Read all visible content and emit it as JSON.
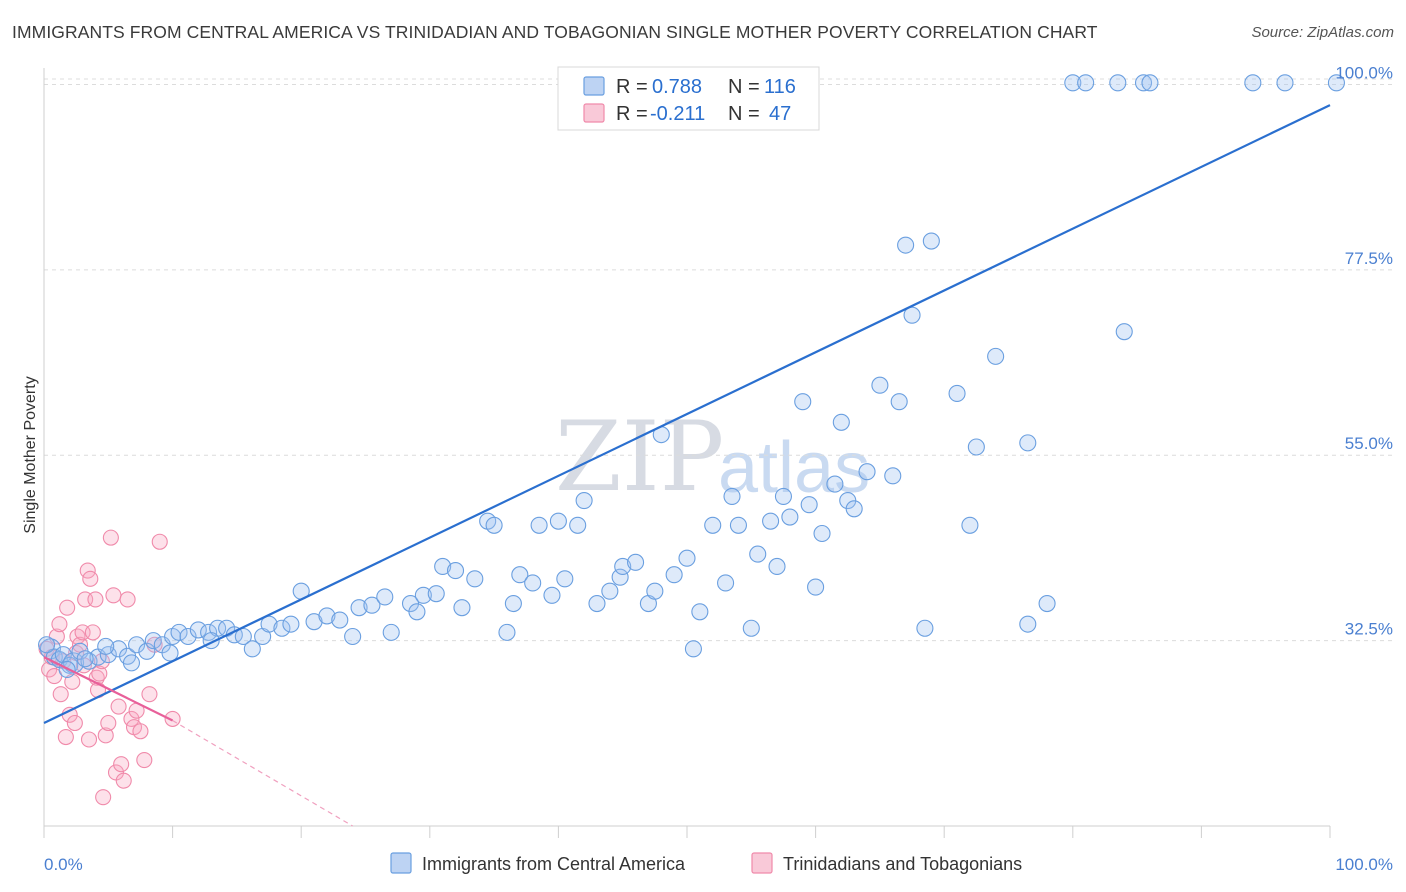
{
  "title": "IMMIGRANTS FROM CENTRAL AMERICA VS TRINIDADIAN AND TOBAGONIAN SINGLE MOTHER POVERTY CORRELATION CHART",
  "source": "Source: ZipAtlas.com",
  "watermark": {
    "zip": "ZIP",
    "atlas": "atlas"
  },
  "colors": {
    "blue": "#6a9fe0",
    "blue_line": "#2a6fcf",
    "pink": "#f08aaa",
    "pink_line": "#e8609a",
    "axis_text": "#4a7fd0"
  },
  "legend": {
    "series1": {
      "r_label": "R =",
      "r_value": "0.788",
      "n_label": "N =",
      "n_value": "116"
    },
    "series2": {
      "r_label": "R =",
      "r_value": "-0.211",
      "n_label": "N =",
      "n_value": "47"
    }
  },
  "chart_data": {
    "type": "scatter",
    "title": "IMMIGRANTS FROM CENTRAL AMERICA VS TRINIDADIAN AND TOBAGONIAN SINGLE MOTHER POVERTY CORRELATION CHART",
    "xlabel": "",
    "ylabel": "Single Mother Poverty",
    "xlim": [
      0,
      100
    ],
    "ylim": [
      10,
      102
    ],
    "x_tick_labels": [
      "0.0%",
      "100.0%"
    ],
    "y_ticks": [
      32.5,
      55.0,
      77.5,
      100.0
    ],
    "y_tick_labels": [
      "32.5%",
      "55.0%",
      "77.5%",
      "100.0%"
    ],
    "grid": true,
    "legend_position": "top-center",
    "series": [
      {
        "name": "Immigrants from Central America",
        "color": "#6a9fe0",
        "trend": {
          "x": [
            0,
            100
          ],
          "y": [
            22.5,
            97.5
          ]
        },
        "points": [
          [
            0.5,
            31.5
          ],
          [
            0.8,
            30.5
          ],
          [
            1.2,
            30.2
          ],
          [
            1.5,
            30.8
          ],
          [
            2.0,
            29.5
          ],
          [
            2.3,
            29.8
          ],
          [
            2.8,
            31.2
          ],
          [
            3.5,
            30.0
          ],
          [
            4.2,
            30.5
          ],
          [
            5.0,
            30.8
          ],
          [
            5.8,
            31.5
          ],
          [
            6.5,
            30.6
          ],
          [
            7.2,
            32.0
          ],
          [
            8.0,
            31.2
          ],
          [
            8.5,
            32.5
          ],
          [
            9.2,
            32.0
          ],
          [
            10.0,
            33.0
          ],
          [
            10.5,
            33.5
          ],
          [
            11.2,
            33.0
          ],
          [
            12.0,
            33.8
          ],
          [
            12.8,
            33.5
          ],
          [
            13.5,
            34.0
          ],
          [
            14.2,
            34.0
          ],
          [
            14.8,
            33.2
          ],
          [
            15.5,
            33.0
          ],
          [
            16.2,
            31.5
          ],
          [
            17.0,
            33.0
          ],
          [
            17.5,
            34.5
          ],
          [
            18.5,
            34.0
          ],
          [
            19.2,
            34.5
          ],
          [
            20.0,
            38.5
          ],
          [
            21.0,
            34.8
          ],
          [
            22.0,
            35.5
          ],
          [
            23.0,
            35.0
          ],
          [
            24.0,
            33.0
          ],
          [
            24.5,
            36.5
          ],
          [
            25.5,
            36.8
          ],
          [
            26.5,
            37.8
          ],
          [
            27.0,
            33.5
          ],
          [
            28.5,
            37.0
          ],
          [
            29.0,
            36.0
          ],
          [
            29.5,
            38.0
          ],
          [
            30.5,
            38.2
          ],
          [
            31.0,
            41.5
          ],
          [
            32.0,
            41.0
          ],
          [
            32.5,
            36.5
          ],
          [
            33.5,
            40.0
          ],
          [
            34.5,
            47.0
          ],
          [
            35.0,
            46.5
          ],
          [
            36.0,
            33.5
          ],
          [
            36.5,
            37.0
          ],
          [
            37.0,
            40.5
          ],
          [
            38.0,
            39.5
          ],
          [
            38.5,
            46.5
          ],
          [
            39.5,
            38.0
          ],
          [
            40.0,
            47.0
          ],
          [
            40.5,
            40.0
          ],
          [
            41.5,
            46.5
          ],
          [
            42.0,
            49.5
          ],
          [
            43.0,
            37.0
          ],
          [
            44.0,
            38.5
          ],
          [
            44.8,
            40.2
          ],
          [
            45.0,
            41.5
          ],
          [
            46.0,
            42.0
          ],
          [
            47.0,
            37.0
          ],
          [
            47.5,
            38.5
          ],
          [
            48.0,
            57.5
          ],
          [
            49.0,
            40.5
          ],
          [
            50.0,
            42.5
          ],
          [
            50.5,
            31.5
          ],
          [
            51.0,
            36.0
          ],
          [
            52.0,
            46.5
          ],
          [
            53.0,
            39.5
          ],
          [
            53.5,
            50.0
          ],
          [
            54.0,
            46.5
          ],
          [
            55.0,
            34.0
          ],
          [
            55.5,
            43.0
          ],
          [
            56.5,
            47.0
          ],
          [
            57.0,
            41.5
          ],
          [
            57.5,
            50.0
          ],
          [
            58.0,
            47.5
          ],
          [
            59.0,
            61.5
          ],
          [
            59.5,
            49.0
          ],
          [
            60.0,
            39.0
          ],
          [
            60.5,
            45.5
          ],
          [
            61.5,
            51.5
          ],
          [
            62.0,
            59.0
          ],
          [
            62.5,
            49.5
          ],
          [
            63.0,
            48.5
          ],
          [
            64.0,
            53.0
          ],
          [
            65.0,
            63.5
          ],
          [
            66.0,
            52.5
          ],
          [
            66.5,
            61.5
          ],
          [
            67.0,
            80.5
          ],
          [
            67.5,
            72.0
          ],
          [
            68.5,
            34.0
          ],
          [
            69.0,
            81.0
          ],
          [
            71.0,
            62.5
          ],
          [
            72.0,
            46.5
          ],
          [
            72.5,
            56.0
          ],
          [
            74.0,
            67.0
          ],
          [
            76.5,
            34.5
          ],
          [
            76.5,
            56.5
          ],
          [
            78.0,
            37.0
          ],
          [
            80.0,
            100.2
          ],
          [
            81.0,
            100.2
          ],
          [
            83.5,
            100.2
          ],
          [
            84.0,
            70.0
          ],
          [
            85.5,
            100.2
          ],
          [
            86.0,
            100.2
          ],
          [
            94.0,
            100.2
          ],
          [
            96.5,
            100.2
          ],
          [
            100.5,
            100.2
          ],
          [
            0.2,
            32.0
          ],
          [
            1.8,
            29.0
          ],
          [
            3.2,
            30.3
          ],
          [
            4.8,
            31.8
          ],
          [
            6.8,
            29.8
          ],
          [
            9.8,
            31.0
          ],
          [
            13.0,
            32.5
          ]
        ]
      },
      {
        "name": "Trinidadians and Tobagonians",
        "color": "#f08aaa",
        "trend": {
          "x": [
            0,
            10
          ],
          "y": [
            30.5,
            22.8
          ]
        },
        "trend_extended": {
          "x": [
            10,
            24
          ],
          "y": [
            22.8,
            10.0
          ]
        },
        "points": [
          [
            0.2,
            31.5
          ],
          [
            0.4,
            29.0
          ],
          [
            0.6,
            30.5
          ],
          [
            0.8,
            28.2
          ],
          [
            1.0,
            33.0
          ],
          [
            1.2,
            34.5
          ],
          [
            1.3,
            26.0
          ],
          [
            1.5,
            30.0
          ],
          [
            1.7,
            20.8
          ],
          [
            1.8,
            36.5
          ],
          [
            2.0,
            23.5
          ],
          [
            2.2,
            27.5
          ],
          [
            2.4,
            22.5
          ],
          [
            2.5,
            31.0
          ],
          [
            2.6,
            33.0
          ],
          [
            2.8,
            32.0
          ],
          [
            3.0,
            33.5
          ],
          [
            3.1,
            29.5
          ],
          [
            3.2,
            37.5
          ],
          [
            3.4,
            41.0
          ],
          [
            3.5,
            20.5
          ],
          [
            3.6,
            40.0
          ],
          [
            3.8,
            33.5
          ],
          [
            4.0,
            37.5
          ],
          [
            4.1,
            28.0
          ],
          [
            4.2,
            26.5
          ],
          [
            4.3,
            28.5
          ],
          [
            4.5,
            30.0
          ],
          [
            4.6,
            13.5
          ],
          [
            4.8,
            21.0
          ],
          [
            5.0,
            22.5
          ],
          [
            5.2,
            45.0
          ],
          [
            5.4,
            38.0
          ],
          [
            5.6,
            16.5
          ],
          [
            5.8,
            24.5
          ],
          [
            6.0,
            17.5
          ],
          [
            6.2,
            15.5
          ],
          [
            6.5,
            37.5
          ],
          [
            6.8,
            23.0
          ],
          [
            7.0,
            22.0
          ],
          [
            7.2,
            24.0
          ],
          [
            7.5,
            21.5
          ],
          [
            7.8,
            18.0
          ],
          [
            8.2,
            26.0
          ],
          [
            8.6,
            32.0
          ],
          [
            9.0,
            44.5
          ],
          [
            10.0,
            23.0
          ]
        ]
      }
    ]
  },
  "bottom_legend": {
    "item1": "Immigrants from Central America",
    "item2": "Trinidadians and Tobagonians"
  }
}
